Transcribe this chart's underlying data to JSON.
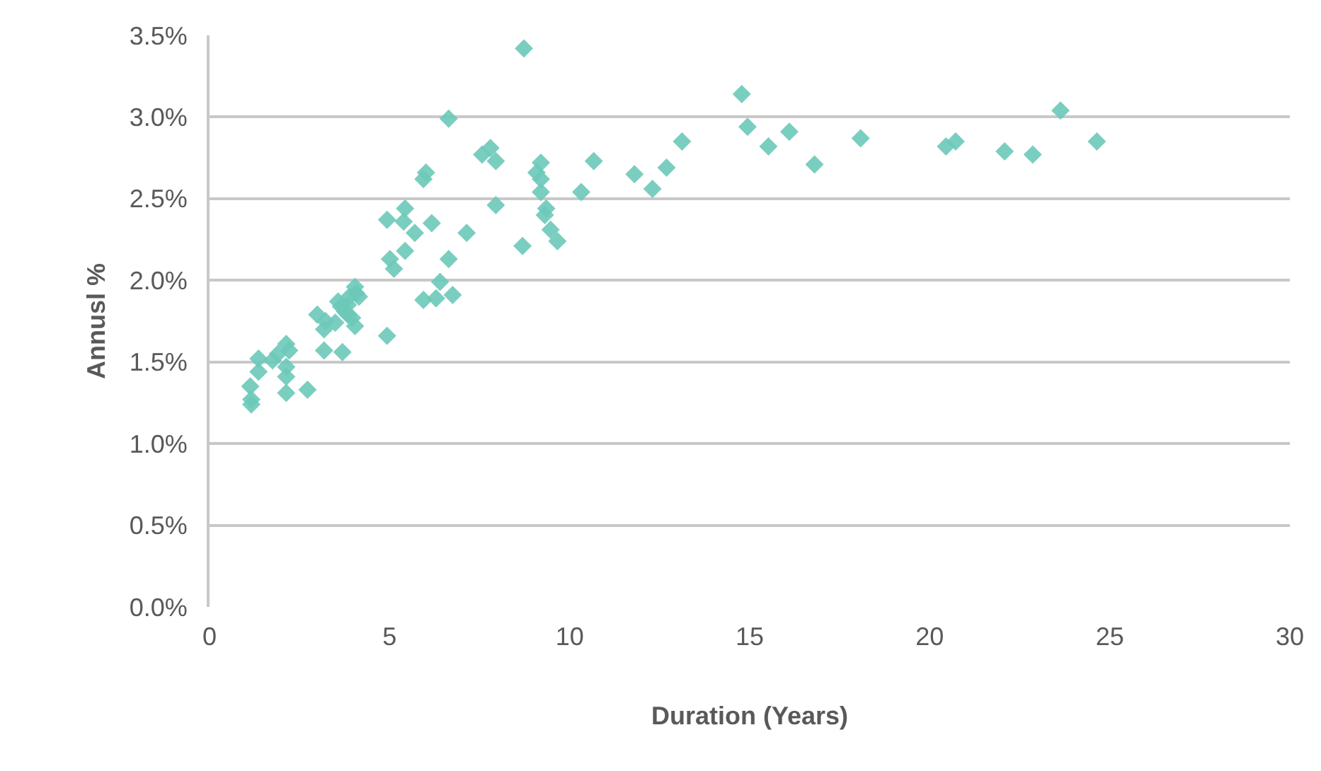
{
  "chart_data": {
    "type": "scatter",
    "xlabel": "Duration (Years)",
    "ylabel": "Annusl %",
    "marker": "diamond",
    "grid": "y",
    "xlim": [
      0,
      30
    ],
    "xticks": [
      0,
      5,
      10,
      15,
      20,
      25,
      30
    ],
    "ylim": [
      0,
      3.5
    ],
    "yticks": [
      {
        "value": 0,
        "label": "0.0%"
      },
      {
        "value": 0.5,
        "label": "0.5%"
      },
      {
        "value": 1,
        "label": "1.0%"
      },
      {
        "value": 1.5,
        "label": "1.5%"
      },
      {
        "value": 2,
        "label": "2.0%"
      },
      {
        "value": 2.5,
        "label": "2.5%"
      },
      {
        "value": 3,
        "label": "3.0%"
      },
      {
        "value": 3.5,
        "label": "3.5%"
      }
    ],
    "series": [
      {
        "color": "#6cc9b8",
        "x": [
          1.13,
          1.16,
          1.16,
          1.36,
          1.36,
          1.75,
          1.9,
          2.13,
          2.21,
          2.13,
          2.13,
          2.13,
          2.72,
          2.99,
          3.22,
          3.18,
          3.18,
          3.69,
          3.49,
          3.57,
          3.65,
          3.76,
          3.84,
          3.88,
          4.04,
          4.07,
          3.96,
          4.04,
          4.15,
          3.84,
          4.93,
          5.01,
          5.12,
          5.43,
          6.64,
          6.4,
          5.94,
          6.29,
          6.75,
          8.69,
          9.66,
          8.73,
          6.64,
          7.57,
          7.8,
          7.95,
          6.01,
          5.94,
          9.2,
          9.08,
          9.2,
          9.2,
          10.67,
          10.32,
          7.95,
          9.35,
          9.31,
          4.93,
          5.43,
          5.39,
          5.7,
          6.17,
          7.14,
          9.47,
          11.8,
          12.3,
          12.69,
          13.12,
          14.78,
          14.94,
          15.52,
          16.1,
          16.8,
          18.08,
          20.45,
          20.72,
          22.08,
          22.86,
          23.63,
          24.64
        ],
        "values": [
          1.35,
          1.27,
          1.24,
          1.44,
          1.52,
          1.51,
          1.55,
          1.61,
          1.57,
          1.47,
          1.41,
          1.31,
          1.33,
          1.79,
          1.75,
          1.7,
          1.57,
          1.56,
          1.74,
          1.87,
          1.84,
          1.81,
          1.85,
          1.9,
          1.96,
          1.92,
          1.77,
          1.72,
          1.9,
          1.79,
          1.66,
          2.13,
          2.07,
          2.18,
          2.13,
          1.99,
          1.88,
          1.89,
          1.91,
          2.21,
          2.24,
          3.42,
          2.99,
          2.77,
          2.81,
          2.73,
          2.66,
          2.62,
          2.72,
          2.66,
          2.62,
          2.54,
          2.73,
          2.54,
          2.46,
          2.44,
          2.4,
          2.37,
          2.44,
          2.36,
          2.29,
          2.35,
          2.29,
          2.31,
          2.65,
          2.56,
          2.69,
          2.85,
          3.14,
          2.94,
          2.82,
          2.91,
          2.71,
          2.87,
          2.82,
          2.85,
          2.79,
          2.77,
          3.04,
          2.85
        ]
      }
    ]
  }
}
